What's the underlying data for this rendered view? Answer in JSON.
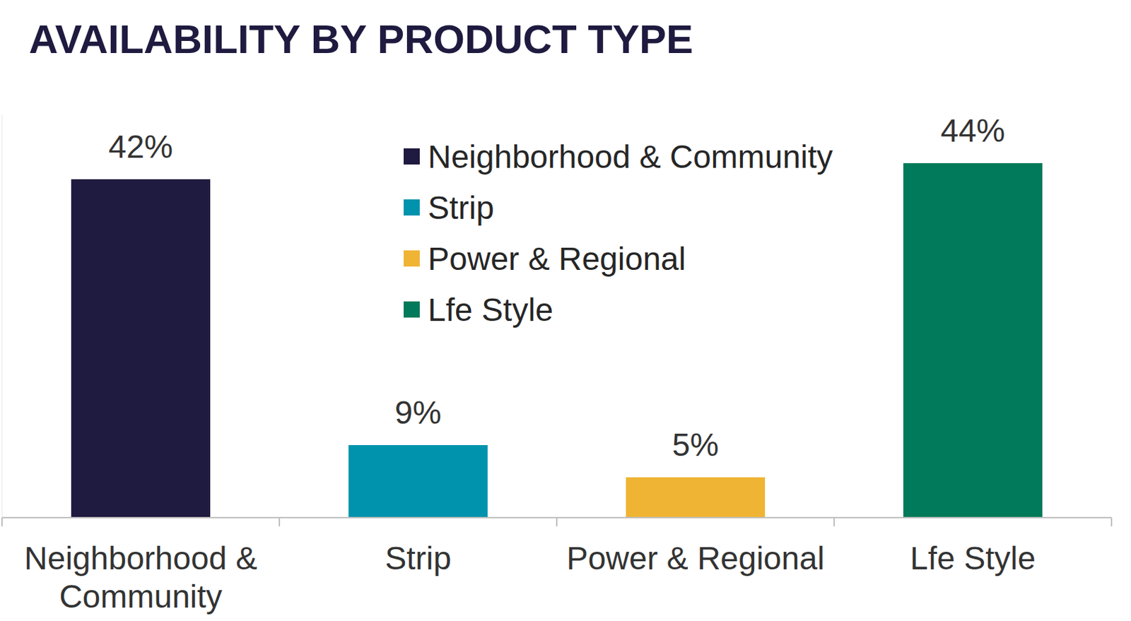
{
  "chart_data": {
    "type": "bar",
    "title": "AVAILABILITY BY PRODUCT TYPE",
    "categories": [
      "Neighborhood & Community",
      "Strip",
      "Power & Regional",
      "Lfe Style"
    ],
    "values": [
      42,
      9,
      5,
      44
    ],
    "value_labels": [
      "42%",
      "9%",
      "5%",
      "44%"
    ],
    "colors": [
      "#1f1a3f",
      "#0093ad",
      "#f0b434",
      "#007a5a"
    ],
    "ylim": [
      0,
      50
    ],
    "data_labels": true,
    "legend": "top",
    "tick_labels": "x"
  }
}
